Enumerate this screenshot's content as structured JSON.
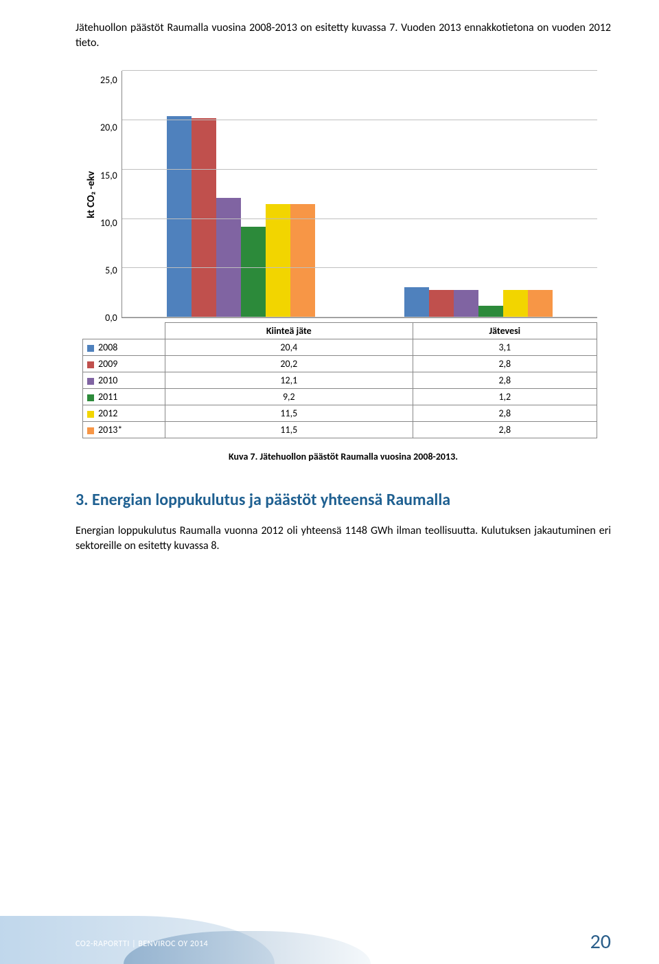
{
  "intro": "Jätehuollon päästöt Raumalla vuosina 2008-2013 on esitetty kuvassa 7. Vuoden 2013 ennakkotietona on vuoden 2012 tieto.",
  "chart": {
    "type": "bar",
    "ylabel": "kt CO₂ -ekv",
    "ymin": 0.0,
    "ymax": 25.0,
    "ystep": 5.0,
    "yticks": [
      "25,0",
      "20,0",
      "15,0",
      "10,0",
      "5,0",
      "0,0"
    ],
    "categories": [
      "Kiinteä jäte",
      "Jätevesi"
    ],
    "series": [
      {
        "name": "2008",
        "color": "#4f81bd",
        "values": [
          20.4,
          3.1
        ]
      },
      {
        "name": "2009",
        "color": "#c0504d",
        "values": [
          20.2,
          2.8
        ]
      },
      {
        "name": "2010",
        "color": "#8064a2",
        "values": [
          12.1,
          2.8
        ]
      },
      {
        "name": "2011",
        "color": "#2c8a3a",
        "values": [
          9.2,
          1.2
        ]
      },
      {
        "name": "2012",
        "color": "#f2d500",
        "values": [
          11.5,
          2.8
        ]
      },
      {
        "name": "2013*",
        "color": "#f79646",
        "values": [
          11.5,
          2.8
        ]
      }
    ],
    "grid_color": "#bfbfbf",
    "axis_color": "#888888",
    "background": "#ffffff"
  },
  "caption": "Kuva 7. Jätehuollon päästöt Raumalla vuosina 2008-2013.",
  "section": {
    "heading": "3. Energian loppukulutus ja päästöt yhteensä Raumalla",
    "heading_color": "#1f6091",
    "paragraph": "Energian loppukulutus Raumalla vuonna 2012 oli yhteensä 1148 GWh ilman teollisuutta. Kulutuksen jakautuminen eri sektoreille on esitetty kuvassa 8."
  },
  "footer": {
    "text": "CO2-RAPORTTI | BENVIROC OY 2014",
    "page": "20",
    "page_color": "#2a5e8a"
  }
}
